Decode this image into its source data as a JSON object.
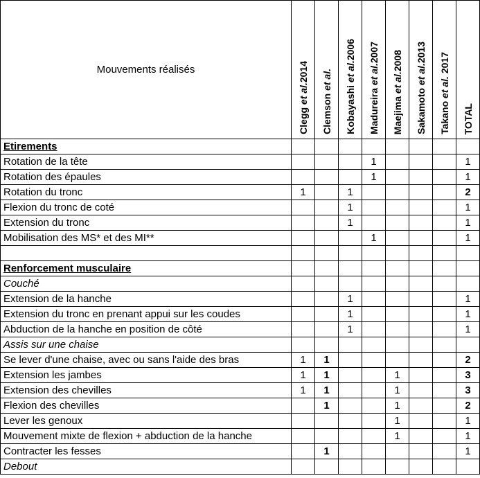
{
  "header": {
    "label_title": "Mouvements réalisés",
    "columns": [
      {
        "html": "Clegg <i>et al.</i>2014",
        "bold": false
      },
      {
        "html": "Clemson <i>et al.</i>",
        "bold": true
      },
      {
        "html": "Kobayashi <i>et al.</i>2006",
        "bold": false
      },
      {
        "html": "Madureira <i>et al.</i>2007",
        "bold": false
      },
      {
        "html": "Maejima <i>et al.</i>2008",
        "bold": false
      },
      {
        "html": "Sakamoto <i>et al.</i>2013",
        "bold": false
      },
      {
        "html": "Takano <i>et al.</i> 2017",
        "bold": false
      },
      {
        "html": "TOTAL",
        "bold": false
      }
    ]
  },
  "rows": [
    {
      "label": "Etirements",
      "class": "section-hdr",
      "cells": [
        "",
        "",
        "",
        "",
        "",
        "",
        "",
        ""
      ]
    },
    {
      "label": "Rotation de la tête",
      "cells": [
        "",
        "",
        "",
        "1",
        "",
        "",
        "",
        "1"
      ]
    },
    {
      "label": "Rotation des épaules",
      "cells": [
        "",
        "",
        "",
        "1",
        "",
        "",
        "",
        "1"
      ]
    },
    {
      "label": "Rotation du tronc",
      "cells": [
        "1",
        "",
        "1",
        "",
        "",
        "",
        "",
        ""
      ],
      "total": "2",
      "total_bold": true
    },
    {
      "label": "Flexion du tronc de coté",
      "cells": [
        "",
        "",
        "1",
        "",
        "",
        "",
        "",
        "1"
      ]
    },
    {
      "label": "Extension du tronc",
      "cells": [
        "",
        "",
        "1",
        "",
        "",
        "",
        "",
        "1"
      ]
    },
    {
      "label": "Mobilisation des MS* et des MI**",
      "cells": [
        "",
        "",
        "",
        "1",
        "",
        "",
        "",
        "1"
      ]
    },
    {
      "label": "",
      "cells": [
        "",
        "",
        "",
        "",
        "",
        "",
        "",
        ""
      ]
    },
    {
      "label": "Renforcement musculaire",
      "class": "section-hdr",
      "cells": [
        "",
        "",
        "",
        "",
        "",
        "",
        "",
        ""
      ]
    },
    {
      "label": "Couché",
      "class": "italic",
      "cells": [
        "",
        "",
        "",
        "",
        "",
        "",
        "",
        ""
      ]
    },
    {
      "label": "Extension de la hanche",
      "cells": [
        "",
        "",
        "1",
        "",
        "",
        "",
        "",
        "1"
      ]
    },
    {
      "label": "Extension du tronc en prenant appui sur les coudes",
      "cells": [
        "",
        "",
        "1",
        "",
        "",
        "",
        "",
        "1"
      ]
    },
    {
      "label": "Abduction de la hanche en position de côté",
      "cells": [
        "",
        "",
        "1",
        "",
        "",
        "",
        "",
        "1"
      ]
    },
    {
      "label": "Assis sur une chaise",
      "class": "italic",
      "cells": [
        "",
        "",
        "",
        "",
        "",
        "",
        "",
        ""
      ]
    },
    {
      "label": "Se lever d'une chaise, avec ou sans l'aide des bras",
      "cells": [
        "1",
        "",
        "",
        "",
        "",
        "",
        "",
        ""
      ],
      "c2": "1",
      "c2_bold": true,
      "total": "2",
      "total_bold": true
    },
    {
      "label": "Extension les jambes",
      "cells": [
        "1",
        "",
        "",
        "",
        "1",
        "",
        "",
        ""
      ],
      "c2": "1",
      "c2_bold": true,
      "total": "3",
      "total_bold": true
    },
    {
      "label": "Extension des chevilles",
      "cells": [
        "1",
        "",
        "",
        "",
        "1",
        "",
        "",
        ""
      ],
      "c2": "1",
      "c2_bold": true,
      "total": "3",
      "total_bold": true
    },
    {
      "label": "Flexion des chevilles",
      "cells": [
        "",
        "",
        "",
        "",
        "1",
        "",
        "",
        ""
      ],
      "c2": "1",
      "c2_bold": true,
      "total": "2",
      "total_bold": true
    },
    {
      "label": "Lever les genoux",
      "cells": [
        "",
        "",
        "",
        "",
        "1",
        "",
        "",
        "1"
      ]
    },
    {
      "label": "Mouvement mixte de flexion + abduction de la hanche",
      "cells": [
        "",
        "",
        "",
        "",
        "1",
        "",
        "",
        "1"
      ]
    },
    {
      "label": "Contracter les fesses",
      "cells": [
        "",
        "",
        "",
        "",
        "",
        "",
        "",
        ""
      ],
      "c2": "1",
      "c2_bold": true,
      "total": "1"
    },
    {
      "label": "Debout",
      "class": "italic",
      "cells": [
        "",
        "",
        "",
        "",
        "",
        "",
        "",
        ""
      ]
    }
  ]
}
